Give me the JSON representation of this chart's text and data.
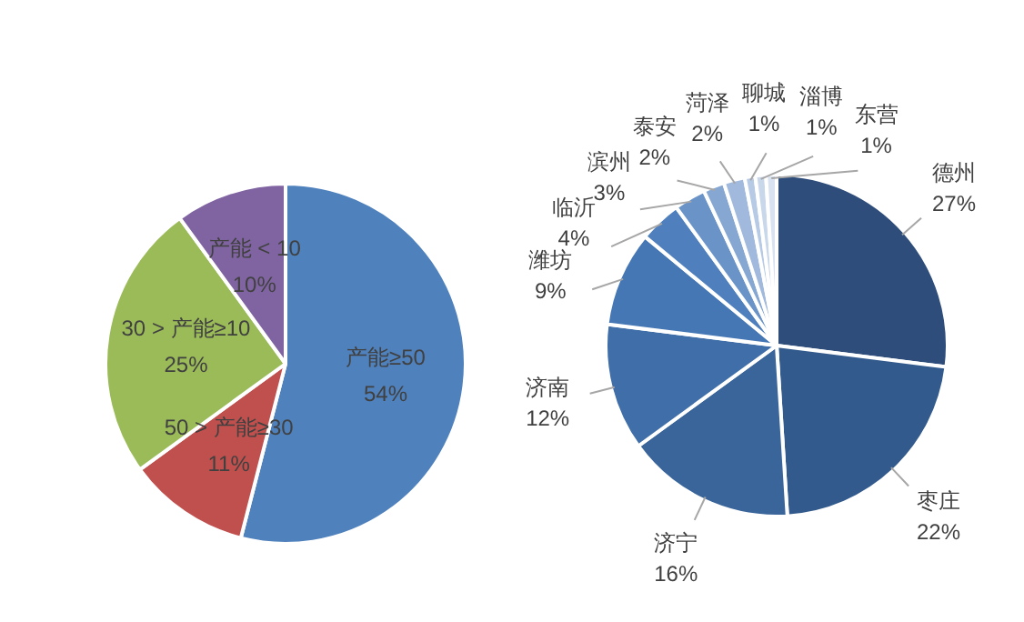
{
  "chart_data": [
    {
      "type": "pie",
      "categories": [
        "产能≥50",
        "50 > 产能≥30",
        "30 > 产能≥10",
        "产能 < 10"
      ],
      "values": [
        54,
        11,
        25,
        10
      ],
      "value_labels": [
        "54%",
        "11%",
        "25%",
        "10%"
      ],
      "colors": [
        "#4f81bd",
        "#c0504d",
        "#9bbb59",
        "#8064a2"
      ]
    },
    {
      "type": "pie",
      "categories": [
        "德州",
        "枣庄",
        "济宁",
        "济南",
        "潍坊",
        "临沂",
        "滨州",
        "泰安",
        "菏泽",
        "聊城",
        "淄博",
        "东营"
      ],
      "values": [
        27,
        22,
        16,
        12,
        9,
        4,
        3,
        2,
        2,
        1,
        1,
        1
      ],
      "value_labels": [
        "27%",
        "22%",
        "16%",
        "12%",
        "9%",
        "4%",
        "3%",
        "2%",
        "2%",
        "1%",
        "1%",
        "1%"
      ],
      "colors": [
        "#2e4d7a",
        "#335a8c",
        "#3a659b",
        "#3f6ea8",
        "#4677b5",
        "#4f80bd",
        "#6a93c8",
        "#86a7d2",
        "#a0b9dc",
        "#b7cae5",
        "#c9d7eb",
        "#d9e2f1"
      ]
    }
  ]
}
